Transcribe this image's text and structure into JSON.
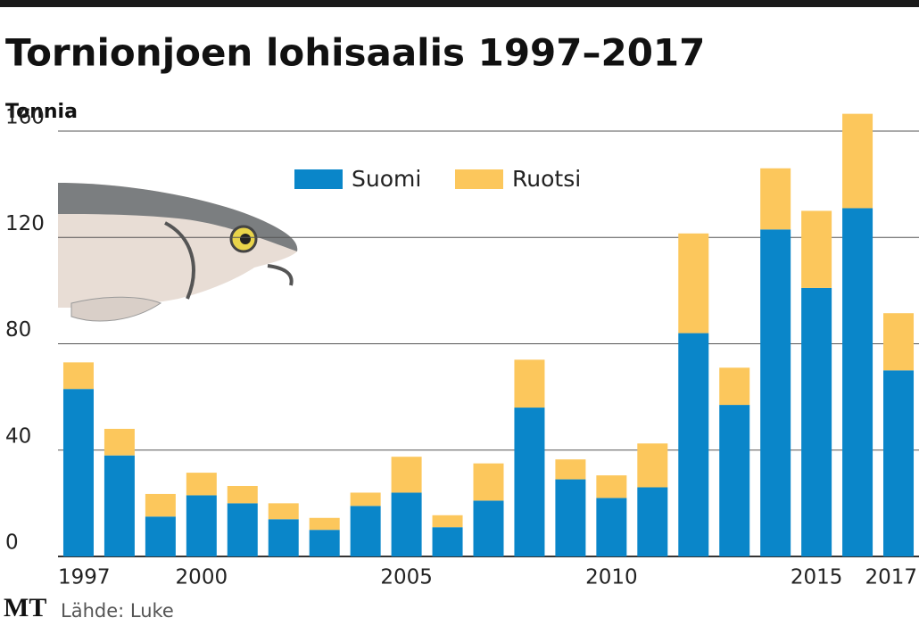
{
  "chart_data": {
    "type": "bar",
    "stacked": true,
    "title": "Tornionjoen lohisaalis 1997–2017",
    "ylabel": "Tonnia",
    "source": "Lähde: Luke",
    "logo": "MT",
    "categories": [
      "1997",
      null,
      null,
      "2000",
      null,
      null,
      null,
      null,
      "2005",
      null,
      null,
      null,
      null,
      "2010",
      null,
      null,
      null,
      null,
      "2015",
      null,
      "2017"
    ],
    "series": [
      {
        "name": "Suomi",
        "color": "#0a86c9",
        "values": [
          63,
          38,
          15,
          23,
          20,
          14,
          10,
          19,
          24,
          11,
          21,
          56,
          29,
          22,
          26,
          84,
          57,
          123,
          101,
          131,
          70
        ]
      },
      {
        "name": "Ruotsi",
        "color": "#fcc75c",
        "values": [
          10,
          10,
          8.5,
          8.5,
          6.5,
          6,
          4.5,
          5,
          13.5,
          4.5,
          14,
          18,
          7.5,
          8.5,
          16.5,
          37.5,
          14,
          23,
          29,
          35.5,
          21.5
        ]
      }
    ],
    "ylim": [
      0,
      160
    ],
    "yticks": [
      0,
      40,
      80,
      120,
      160
    ],
    "grid": true
  }
}
